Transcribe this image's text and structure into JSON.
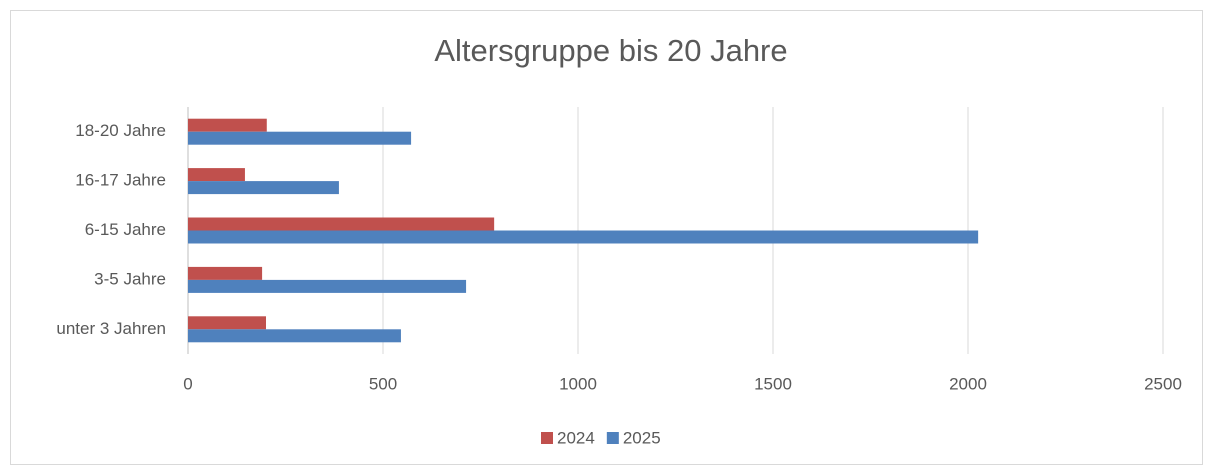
{
  "chart_data": {
    "type": "bar",
    "orientation": "horizontal",
    "title": "Altersgruppe bis 20 Jahre",
    "categories": [
      "unter 3 Jahren",
      "3-5 Jahre",
      "6-15 Jahre",
      "16-17 Jahre",
      "18-20 Jahre"
    ],
    "series": [
      {
        "name": "2024",
        "color": "#c0504d",
        "values": [
          200,
          190,
          785,
          146,
          202
        ]
      },
      {
        "name": "2025",
        "color": "#4f81bd",
        "values": [
          546,
          713,
          2026,
          387,
          572
        ]
      }
    ],
    "xlim": [
      0,
      2500
    ],
    "xticks": [
      0,
      500,
      1000,
      1500,
      2000,
      2500
    ],
    "grid": true,
    "legend": "bottom"
  }
}
